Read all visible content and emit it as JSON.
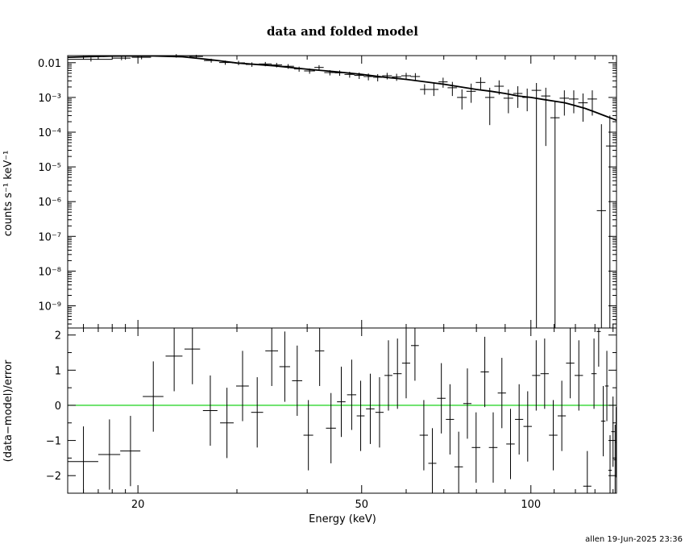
{
  "chart_data": [
    {
      "panel": "top",
      "type": "scatter",
      "title": "data and folded model",
      "ylabel": "counts s⁻¹ keV⁻¹",
      "xscale": "log",
      "yscale": "log",
      "xlim": [
        15,
        142
      ],
      "ylim": [
        2.3e-10,
        0.016
      ],
      "yticks": [
        {
          "value": 0.01,
          "label": "0.01"
        },
        {
          "value": 0.001,
          "label": "10⁻³"
        },
        {
          "value": 0.0001,
          "label": "10⁻⁴"
        },
        {
          "value": 1e-05,
          "label": "10⁻⁵"
        },
        {
          "value": 1e-06,
          "label": "10⁻⁶"
        },
        {
          "value": 1e-07,
          "label": "10⁻⁷"
        },
        {
          "value": 1e-08,
          "label": "10⁻⁸"
        },
        {
          "value": 1e-09,
          "label": "10⁻⁹"
        }
      ],
      "data_points": [
        {
          "x": 16.5,
          "xerr": 1.5,
          "y": 0.0125,
          "ylo": 0.0108,
          "yhi": 0.0142
        },
        {
          "x": 18.7,
          "xerr": 0.7,
          "y": 0.0135,
          "ylo": 0.0118,
          "yhi": 0.0152
        },
        {
          "x": 20.3,
          "xerr": 0.8,
          "y": 0.0143,
          "ylo": 0.0125,
          "yhi": 0.016
        },
        {
          "x": 23.4,
          "xerr": 1.6,
          "y": 0.0158,
          "ylo": 0.014,
          "yhi": 0.0176
        },
        {
          "x": 25.4,
          "xerr": 0.7,
          "y": 0.0151,
          "ylo": 0.0133,
          "yhi": 0.0169
        },
        {
          "x": 27.0,
          "xerr": 0.8,
          "y": 0.0115,
          "ylo": 0.01,
          "yhi": 0.013
        },
        {
          "x": 28.6,
          "xerr": 0.7,
          "y": 0.0101,
          "ylo": 0.0087,
          "yhi": 0.0115
        },
        {
          "x": 30.2,
          "xerr": 0.8,
          "y": 0.0099,
          "ylo": 0.0085,
          "yhi": 0.0113
        },
        {
          "x": 31.9,
          "xerr": 0.8,
          "y": 0.0089,
          "ylo": 0.0076,
          "yhi": 0.0102
        },
        {
          "x": 33.7,
          "xerr": 0.9,
          "y": 0.0092,
          "ylo": 0.0079,
          "yhi": 0.0105
        },
        {
          "x": 35.3,
          "xerr": 0.8,
          "y": 0.0086,
          "ylo": 0.0073,
          "yhi": 0.0099
        },
        {
          "x": 37.0,
          "xerr": 0.9,
          "y": 0.0079,
          "ylo": 0.0067,
          "yhi": 0.0091
        },
        {
          "x": 38.7,
          "xerr": 0.8,
          "y": 0.0066,
          "ylo": 0.0055,
          "yhi": 0.0077
        },
        {
          "x": 40.4,
          "xerr": 0.9,
          "y": 0.0058,
          "ylo": 0.0048,
          "yhi": 0.0068
        },
        {
          "x": 42.0,
          "xerr": 0.8,
          "y": 0.0073,
          "ylo": 0.0061,
          "yhi": 0.0085
        },
        {
          "x": 43.9,
          "xerr": 1.0,
          "y": 0.0052,
          "ylo": 0.0043,
          "yhi": 0.0061
        },
        {
          "x": 45.7,
          "xerr": 0.9,
          "y": 0.0051,
          "ylo": 0.0042,
          "yhi": 0.006
        },
        {
          "x": 47.6,
          "xerr": 1.0,
          "y": 0.0046,
          "ylo": 0.0037,
          "yhi": 0.0055
        },
        {
          "x": 49.5,
          "xerr": 1.0,
          "y": 0.0043,
          "ylo": 0.0034,
          "yhi": 0.0052
        },
        {
          "x": 51.4,
          "xerr": 1.0,
          "y": 0.004,
          "ylo": 0.0031,
          "yhi": 0.0049
        },
        {
          "x": 53.4,
          "xerr": 1.0,
          "y": 0.0038,
          "ylo": 0.0029,
          "yhi": 0.0047
        },
        {
          "x": 55.5,
          "xerr": 1.1,
          "y": 0.0042,
          "ylo": 0.0033,
          "yhi": 0.0051
        },
        {
          "x": 57.7,
          "xerr": 1.1,
          "y": 0.0039,
          "ylo": 0.003,
          "yhi": 0.0048
        },
        {
          "x": 60.0,
          "xerr": 1.2,
          "y": 0.0042,
          "ylo": 0.0033,
          "yhi": 0.0051
        },
        {
          "x": 62.3,
          "xerr": 1.2,
          "y": 0.004,
          "ylo": 0.003,
          "yhi": 0.005
        },
        {
          "x": 64.7,
          "xerr": 1.2,
          "y": 0.0017,
          "ylo": 0.0012,
          "yhi": 0.0024
        },
        {
          "x": 67.2,
          "xerr": 1.3,
          "y": 0.0017,
          "ylo": 0.0011,
          "yhi": 0.0026
        },
        {
          "x": 69.8,
          "xerr": 1.3,
          "y": 0.0028,
          "ylo": 0.0019,
          "yhi": 0.0037
        },
        {
          "x": 72.5,
          "xerr": 1.4,
          "y": 0.0019,
          "ylo": 0.0011,
          "yhi": 0.0028
        },
        {
          "x": 75.4,
          "xerr": 1.5,
          "y": 0.001,
          "ylo": 0.00045,
          "yhi": 0.0017
        },
        {
          "x": 78.3,
          "xerr": 1.5,
          "y": 0.0015,
          "ylo": 0.0007,
          "yhi": 0.0025
        },
        {
          "x": 81.4,
          "xerr": 1.6,
          "y": 0.0027,
          "ylo": 0.0016,
          "yhi": 0.0038
        },
        {
          "x": 84.5,
          "xerr": 1.6,
          "y": 0.001,
          "ylo": 0.00016,
          "yhi": 0.0019
        },
        {
          "x": 87.8,
          "xerr": 1.7,
          "y": 0.0021,
          "ylo": 0.0012,
          "yhi": 0.0031
        },
        {
          "x": 91.2,
          "xerr": 1.8,
          "y": 0.00095,
          "ylo": 0.00035,
          "yhi": 0.0017
        },
        {
          "x": 94.8,
          "xerr": 1.8,
          "y": 0.0013,
          "ylo": 0.0005,
          "yhi": 0.0021
        },
        {
          "x": 98.5,
          "xerr": 1.9,
          "y": 0.001,
          "ylo": 0.0004,
          "yhi": 0.0018
        },
        {
          "x": 102.3,
          "xerr": 2.0,
          "y": 0.0016,
          "ylo": 2.3e-10,
          "yhi": 0.0026
        },
        {
          "x": 106.3,
          "xerr": 2.0,
          "y": 0.0011,
          "ylo": 4e-05,
          "yhi": 0.0019
        },
        {
          "x": 110.4,
          "xerr": 2.1,
          "y": 0.00026,
          "ylo": 2.3e-10,
          "yhi": 0.0008
        },
        {
          "x": 114.7,
          "xerr": 2.2,
          "y": 0.00095,
          "ylo": 0.0003,
          "yhi": 0.0016
        },
        {
          "x": 119.2,
          "xerr": 2.3,
          "y": 0.0009,
          "ylo": 0.00035,
          "yhi": 0.0016
        },
        {
          "x": 123.8,
          "xerr": 2.4,
          "y": 0.0007,
          "ylo": 0.0002,
          "yhi": 0.0013
        },
        {
          "x": 128.6,
          "xerr": 2.5,
          "y": 0.0009,
          "ylo": 0.0003,
          "yhi": 0.0016
        },
        {
          "x": 133.5,
          "xerr": 2.5,
          "y": 5.5e-07,
          "ylo": 2.3e-10,
          "yhi": 0.00017
        },
        {
          "x": 138.2,
          "xerr": 2.2,
          "y": 4e-05,
          "ylo": 2.3e-10,
          "yhi": 0.0003
        }
      ],
      "model_curve": [
        {
          "x": 15,
          "y": 0.0143
        },
        {
          "x": 18,
          "y": 0.0155
        },
        {
          "x": 21,
          "y": 0.0157
        },
        {
          "x": 24,
          "y": 0.0148
        },
        {
          "x": 27,
          "y": 0.0122
        },
        {
          "x": 30,
          "y": 0.0098
        },
        {
          "x": 35,
          "y": 0.0081
        },
        {
          "x": 40,
          "y": 0.0065
        },
        {
          "x": 45,
          "y": 0.0055
        },
        {
          "x": 50,
          "y": 0.0046
        },
        {
          "x": 55,
          "y": 0.0038
        },
        {
          "x": 60,
          "y": 0.0033
        },
        {
          "x": 65,
          "y": 0.0028
        },
        {
          "x": 70,
          "y": 0.0024
        },
        {
          "x": 75,
          "y": 0.002
        },
        {
          "x": 80,
          "y": 0.0017
        },
        {
          "x": 85,
          "y": 0.0015
        },
        {
          "x": 90,
          "y": 0.0013
        },
        {
          "x": 95,
          "y": 0.0011
        },
        {
          "x": 100,
          "y": 0.001
        },
        {
          "x": 105,
          "y": 0.00088
        },
        {
          "x": 110,
          "y": 0.00078
        },
        {
          "x": 115,
          "y": 0.0007
        },
        {
          "x": 120,
          "y": 0.00058
        },
        {
          "x": 125,
          "y": 0.00048
        },
        {
          "x": 130,
          "y": 0.00038
        },
        {
          "x": 135,
          "y": 0.0003
        },
        {
          "x": 142,
          "y": 0.00022
        }
      ]
    },
    {
      "panel": "bottom",
      "type": "scatter",
      "xlabel": "Energy (keV)",
      "ylabel": "(data−model)/error",
      "xscale": "log",
      "xlim": [
        15,
        142
      ],
      "ylim": [
        -2.5,
        2.2
      ],
      "xticks": [
        {
          "value": 20,
          "label": "20"
        },
        {
          "value": 50,
          "label": "50"
        },
        {
          "value": 100,
          "label": "100"
        }
      ],
      "yticks": [
        {
          "value": 2,
          "label": "2"
        },
        {
          "value": 1,
          "label": "1"
        },
        {
          "value": 0,
          "label": "0"
        },
        {
          "value": -1,
          "label": "−1"
        },
        {
          "value": -2,
          "label": "−2"
        }
      ],
      "zero_line_color": "#00cc00",
      "data_points": [
        {
          "x": 16.0,
          "xerr": 1.0,
          "y": -1.6,
          "err": 1.0
        },
        {
          "x": 17.8,
          "xerr": 0.8,
          "y": -1.4,
          "err": 1.0
        },
        {
          "x": 19.4,
          "xerr": 0.8,
          "y": -1.3,
          "err": 1.0
        },
        {
          "x": 21.3,
          "xerr": 0.9,
          "y": 0.25,
          "err": 1.0
        },
        {
          "x": 23.2,
          "xerr": 0.8,
          "y": 1.4,
          "err": 1.0
        },
        {
          "x": 25.0,
          "xerr": 0.8,
          "y": 1.6,
          "err": 1.0
        },
        {
          "x": 26.9,
          "xerr": 0.8,
          "y": -0.15,
          "err": 1.0
        },
        {
          "x": 28.8,
          "xerr": 0.8,
          "y": -0.5,
          "err": 1.0
        },
        {
          "x": 30.7,
          "xerr": 0.8,
          "y": 0.55,
          "err": 1.0
        },
        {
          "x": 32.6,
          "xerr": 0.8,
          "y": -0.2,
          "err": 1.0
        },
        {
          "x": 34.6,
          "xerr": 0.9,
          "y": 1.55,
          "err": 1.0
        },
        {
          "x": 36.5,
          "xerr": 0.8,
          "y": 1.1,
          "err": 1.0
        },
        {
          "x": 38.4,
          "xerr": 0.8,
          "y": 0.7,
          "err": 1.0
        },
        {
          "x": 40.2,
          "xerr": 0.8,
          "y": -0.85,
          "err": 1.0
        },
        {
          "x": 42.1,
          "xerr": 0.8,
          "y": 1.55,
          "err": 1.0
        },
        {
          "x": 44.1,
          "xerr": 0.9,
          "y": -0.65,
          "err": 1.0
        },
        {
          "x": 46.0,
          "xerr": 0.8,
          "y": 0.1,
          "err": 1.0
        },
        {
          "x": 48.0,
          "xerr": 0.9,
          "y": 0.3,
          "err": 1.0
        },
        {
          "x": 49.8,
          "xerr": 0.8,
          "y": -0.3,
          "err": 1.0
        },
        {
          "x": 51.8,
          "xerr": 0.9,
          "y": -0.1,
          "err": 1.0
        },
        {
          "x": 53.8,
          "xerr": 0.9,
          "y": -0.2,
          "err": 1.0
        },
        {
          "x": 55.8,
          "xerr": 0.9,
          "y": 0.85,
          "err": 1.0
        },
        {
          "x": 57.9,
          "xerr": 1.0,
          "y": 0.9,
          "err": 1.0
        },
        {
          "x": 60.0,
          "xerr": 1.0,
          "y": 1.2,
          "err": 1.0
        },
        {
          "x": 62.2,
          "xerr": 1.0,
          "y": 1.7,
          "err": 1.0
        },
        {
          "x": 64.5,
          "xerr": 1.1,
          "y": -0.85,
          "err": 1.0
        },
        {
          "x": 66.8,
          "xerr": 1.1,
          "y": -1.65,
          "err": 1.0
        },
        {
          "x": 69.3,
          "xerr": 1.2,
          "y": 0.2,
          "err": 1.0
        },
        {
          "x": 71.8,
          "xerr": 1.2,
          "y": -0.4,
          "err": 1.0
        },
        {
          "x": 74.4,
          "xerr": 1.3,
          "y": -1.75,
          "err": 1.0
        },
        {
          "x": 77.1,
          "xerr": 1.3,
          "y": 0.05,
          "err": 1.0
        },
        {
          "x": 79.9,
          "xerr": 1.4,
          "y": -1.2,
          "err": 1.0
        },
        {
          "x": 82.8,
          "xerr": 1.4,
          "y": 0.95,
          "err": 1.0
        },
        {
          "x": 85.7,
          "xerr": 1.5,
          "y": -1.2,
          "err": 1.0
        },
        {
          "x": 88.8,
          "xerr": 1.5,
          "y": 0.35,
          "err": 1.0
        },
        {
          "x": 92.0,
          "xerr": 1.6,
          "y": -1.1,
          "err": 1.0
        },
        {
          "x": 95.3,
          "xerr": 1.6,
          "y": -0.4,
          "err": 1.0
        },
        {
          "x": 98.7,
          "xerr": 1.7,
          "y": -0.6,
          "err": 1.0
        },
        {
          "x": 102.2,
          "xerr": 1.7,
          "y": 0.85,
          "err": 1.0
        },
        {
          "x": 105.8,
          "xerr": 1.8,
          "y": 0.9,
          "err": 1.0
        },
        {
          "x": 109.6,
          "xerr": 1.9,
          "y": -0.85,
          "err": 1.0
        },
        {
          "x": 113.5,
          "xerr": 1.9,
          "y": -0.3,
          "err": 1.0
        },
        {
          "x": 117.5,
          "xerr": 2.0,
          "y": 1.2,
          "err": 1.0
        },
        {
          "x": 121.7,
          "xerr": 2.1,
          "y": 0.85,
          "err": 1.0
        },
        {
          "x": 126.0,
          "xerr": 2.1,
          "y": -2.3,
          "err": 1.0
        },
        {
          "x": 129.5,
          "xerr": 1.4,
          "y": 0.9,
          "err": 1.0
        },
        {
          "x": 132.0,
          "xerr": 1.1,
          "y": 2.1,
          "err": 1.0
        },
        {
          "x": 134.5,
          "xerr": 1.2,
          "y": -0.45,
          "err": 1.0
        },
        {
          "x": 136.5,
          "xerr": 1.0,
          "y": 0.55,
          "err": 1.0
        },
        {
          "x": 138.3,
          "xerr": 1.0,
          "y": -1.85,
          "err": 1.0
        },
        {
          "x": 140.0,
          "xerr": 1.0,
          "y": -0.75,
          "err": 1.0
        },
        {
          "x": 141.2,
          "xerr": 0.8,
          "y": -1.55,
          "err": 1.0
        },
        {
          "x": 141.8,
          "xerr": 0.4,
          "y": -1.05,
          "err": 1.0
        }
      ]
    }
  ],
  "footer": {
    "stamp": "allen 19-Jun-2025 23:36"
  }
}
